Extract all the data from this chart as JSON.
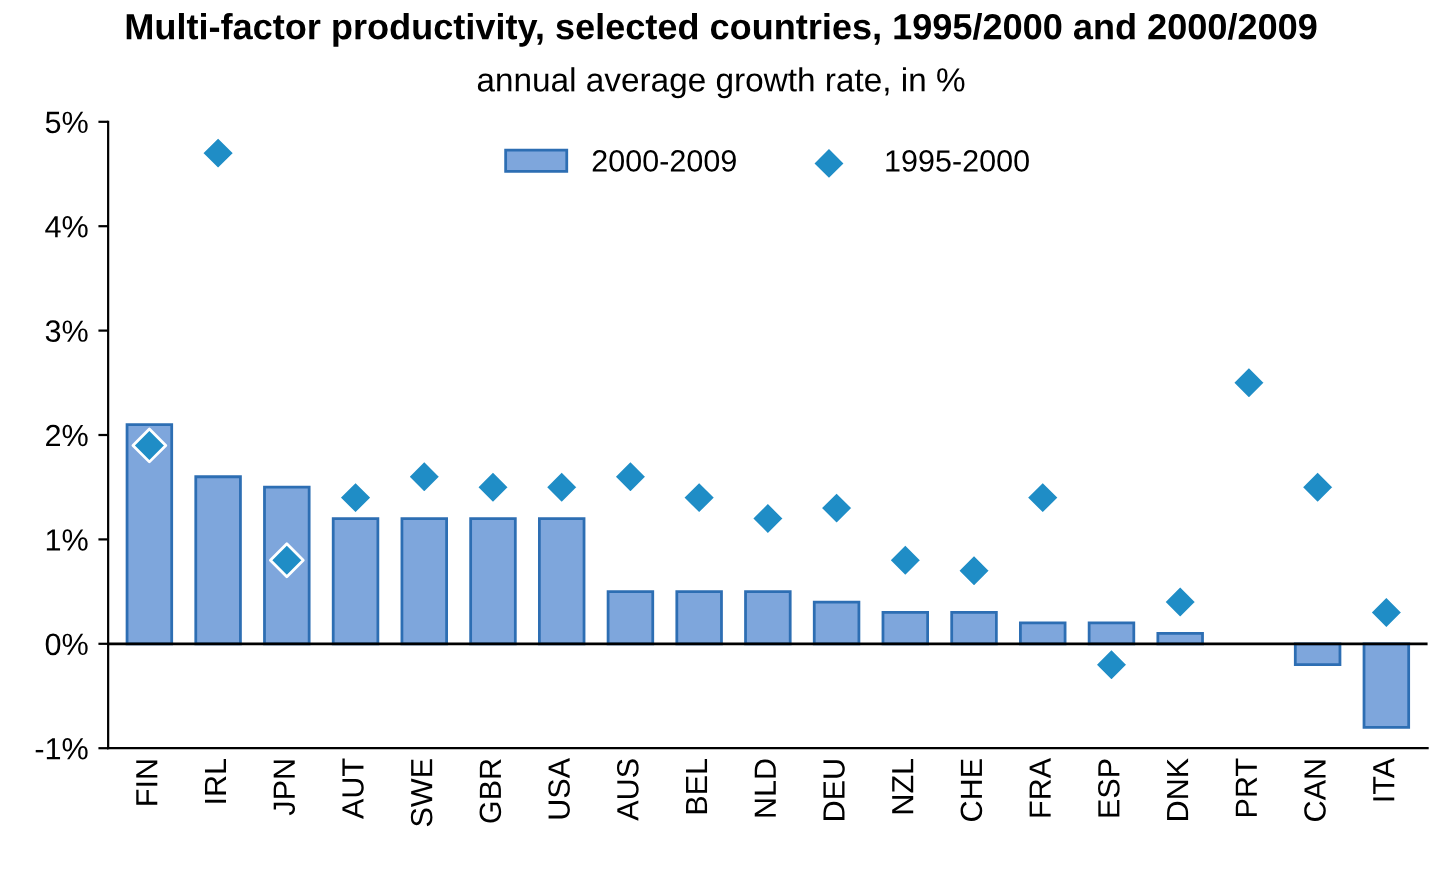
{
  "chart_data": {
    "type": "bar",
    "title": "Multi-factor productivity, selected countries, 1995/2000 and 2000/2009",
    "subtitle": "annual average growth rate, in %",
    "categories": [
      "FIN",
      "IRL",
      "JPN",
      "AUT",
      "SWE",
      "GBR",
      "USA",
      "AUS",
      "BEL",
      "NLD",
      "DEU",
      "NZL",
      "CHE",
      "FRA",
      "ESP",
      "DNK",
      "PRT",
      "CAN",
      "ITA"
    ],
    "series": [
      {
        "name": "2000-2009",
        "color": "#7ea6dc",
        "values": [
          2.1,
          1.6,
          1.5,
          1.2,
          1.2,
          1.2,
          1.2,
          0.5,
          0.5,
          0.5,
          0.4,
          0.3,
          0.3,
          0.2,
          0.2,
          0.1,
          null,
          -0.2,
          -0.8
        ]
      },
      {
        "name": "1995-2000",
        "type": "scatter",
        "color": "#1f8dc6",
        "values": [
          1.9,
          4.7,
          0.8,
          1.4,
          1.6,
          1.5,
          1.5,
          1.6,
          1.4,
          1.2,
          1.3,
          0.8,
          0.7,
          1.4,
          -0.2,
          0.4,
          2.5,
          1.5,
          0.3
        ]
      }
    ],
    "ylim": [
      -1,
      5
    ],
    "yticks": [
      {
        "value": -1,
        "label": "-1%"
      },
      {
        "value": 0,
        "label": "0%"
      },
      {
        "value": 1,
        "label": "1%"
      },
      {
        "value": 2,
        "label": "2%"
      },
      {
        "value": 3,
        "label": "3%"
      },
      {
        "value": 4,
        "label": "4%"
      },
      {
        "value": 5,
        "label": "5%"
      }
    ],
    "ref_lines": [
      {
        "axis": "y",
        "value": 0,
        "color": "#000000"
      }
    ],
    "marker": "diamond",
    "grid": false,
    "legend": "top"
  }
}
